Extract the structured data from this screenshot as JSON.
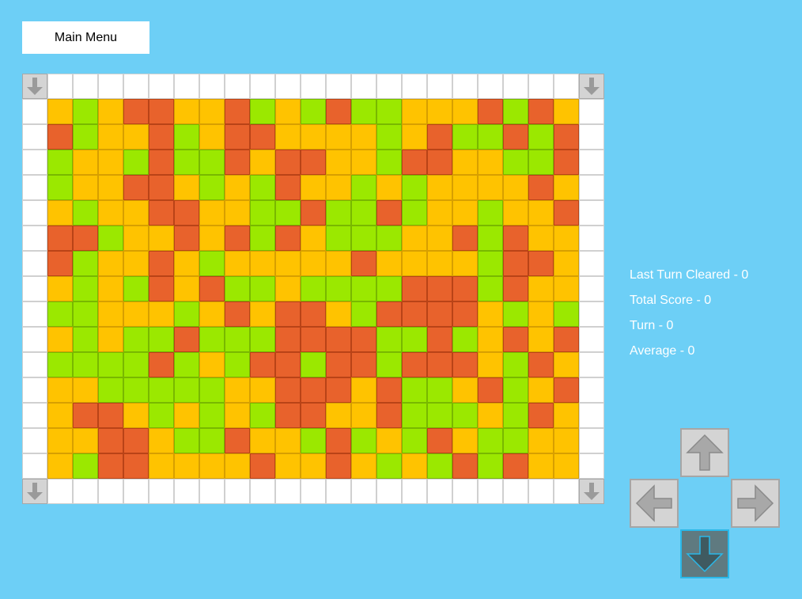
{
  "menu": {
    "label": "Main Menu"
  },
  "board": {
    "rows": [
      "YGYRRYYRGYGRGGYYYRGRY",
      "RGYYRGYRRYYYYGYRGGRGR",
      "GYYGRGGRYRRYYGRRYYGGR",
      "GYYRRYGYGRYYGYGYYYYRY",
      "YGYYRRYYGGRGGRGYYGYYR",
      "RRGYYRYRGRYGGGYYRGRYY",
      "RGYYRYGYYYYYRYYYYGRRY",
      "YGYGRYRGGYGGGGRRRGRYY",
      "GGYYYGYRYRRYGRRRRYGYG",
      "YGYGGRGGGRRRRGGRGYRYR",
      "GGGGRGYGRRGRRGRRRYGRY",
      "YYGGGGGYYRRRYRGGYRGYR",
      "YRRYGYGYGRRYYRGGGYGRY",
      "YYRRYGGRYYGRGYGRYGGYY",
      "YGRRYYYYRYYRYGYGRGRYY"
    ]
  },
  "stats": {
    "last_turn_cleared": "Last Turn Cleared - 0",
    "total_score": "Total Score - 0",
    "turn": "Turn - 0",
    "average": "Average - 0"
  },
  "controls": {
    "up_icon": "arrow-up-icon",
    "left_icon": "arrow-left-icon",
    "right_icon": "arrow-right-icon",
    "down_icon": "arrow-down-icon",
    "active": "down"
  },
  "colors": {
    "background": "#6dcff6",
    "yellow": "#ffc300",
    "green": "#9be800",
    "red": "#e8622c",
    "active_button": "#5f7a80",
    "active_border": "#2ab8e8"
  }
}
